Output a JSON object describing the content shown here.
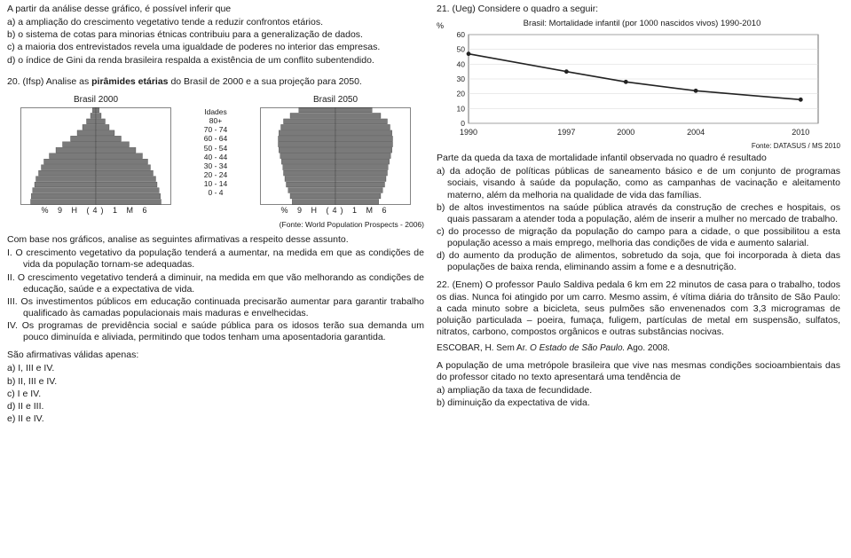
{
  "q19": {
    "intro": "A partir da análise desse gráfico, é possível inferir que",
    "opts": {
      "a": "a) a ampliação do crescimento vegetativo tende a reduzir confrontos etários.",
      "b": "b) o sistema de cotas para minorias étnicas contribuiu para a generalização de dados.",
      "c": "c) a maioria dos entrevistados revela uma igualdade de poderes no interior das empresas.",
      "d": "d) o índice de Gini da renda brasileira respalda a existência de um conflito subentendido."
    }
  },
  "q20": {
    "head_pre": "20. (Ifsp)  Analise as ",
    "head_bold": "pirâmides etárias",
    "head_post": " do Brasil de 2000 e a sua projeção para 2050.",
    "p2000_title": "Brasil 2000",
    "p2050_title": "Brasil 2050",
    "idades_title": "Idades",
    "idades_labels": [
      "80+",
      "70 - 74",
      "60 - 64",
      "50 - 54",
      "40 - 44",
      "30 - 34",
      "20 - 24",
      "10 - 14",
      "0 - 4"
    ],
    "axis": "9     H     (4)            1     M     6",
    "axis_pct": "%",
    "p2000_bars": [
      5,
      8,
      14,
      20,
      28,
      38,
      50,
      60,
      70,
      78,
      82,
      86,
      90,
      92,
      95,
      97,
      98
    ],
    "p2050_bars": [
      55,
      68,
      78,
      82,
      85,
      86,
      86,
      85,
      83,
      81,
      79,
      78,
      76,
      74,
      71,
      68,
      65
    ],
    "bar_color": "#7a7a7a",
    "source": "(Fonte: World Population Prospects - 2006)",
    "body": "Com base nos gráficos, analise as seguintes afirmativas a respeito desse assunto.",
    "stmts": {
      "i": "I. O crescimento vegetativo da população tenderá a aumentar, na medida em que as condições de vida da população tornam-se adequadas.",
      "ii": "II. O crescimento vegetativo tenderá a diminuir, na medida em que vão melhorando as condições de educação, saúde e a expectativa de vida.",
      "iii": "III. Os investimentos públicos em educação continuada precisarão aumentar para garantir trabalho qualificado às camadas populacionais mais maduras e envelhecidas.",
      "iv": "IV. Os programas de previdência social e saúde pública para os idosos terão sua demanda um pouco diminuída e aliviada, permitindo que todos tenham uma aposentadoria garantida."
    },
    "valid": "São afirmativas válidas apenas:",
    "opts": {
      "a": "a) I, III e IV.",
      "b": "b) II, III e IV.",
      "c": "c) I e IV.",
      "d": "d) II e III.",
      "e": "e) II e IV."
    }
  },
  "q21": {
    "head": "21. (Ueg)  Considere o quadro a seguir:",
    "chart": {
      "title": "Brasil: Mortalidade infantil (por 1000 nascidos vivos) 1990-2010",
      "pct": "%",
      "y_ticks": [
        60,
        50,
        40,
        30,
        20,
        10,
        0
      ],
      "x_labels": [
        "1990",
        "1997",
        "2000",
        "2004",
        "2010"
      ],
      "points_x": [
        0,
        0.28,
        0.45,
        0.65,
        0.95
      ],
      "points_y": [
        47,
        35,
        28,
        22,
        16
      ],
      "line_color": "#222222",
      "marker_color": "#222222",
      "bg": "#ffffff",
      "grid": "#d7d7d7",
      "source": "Fonte: DATASUS / MS 2010"
    },
    "overlay_labels": [
      "80+",
      "70 - 74",
      "60 - 64",
      "50 - 54",
      "40 - 44",
      "30 - 34",
      "20 - 24",
      "10 - 14"
    ],
    "body": "Parte da queda da taxa de mortalidade infantil observada no quadro é resultado",
    "opts": {
      "a": "a) da adoção de políticas públicas de saneamento básico e de um conjunto de programas sociais, visando à saúde da população, como as campanhas de vacinação e aleitamento materno, além da melhoria na qualidade de vida das famílias.",
      "b": "b) de altos investimentos na saúde pública através da construção de creches e hospitais, os quais passaram a atender toda a população, além de inserir a mulher no mercado de trabalho.",
      "c": "c) do processo de migração da população do campo para a cidade, o que possibilitou a esta população acesso a mais emprego, melhoria das condições de vida e aumento salarial.",
      "d": "d) do aumento da produção de alimentos, sobretudo da soja, que foi incorporada à dieta das populações de baixa renda, eliminando assim a fome e a desnutrição."
    }
  },
  "q22": {
    "head": "22. (Enem)  O professor Paulo Saldiva pedala 6 km em 22 minutos de casa para o trabalho, todos os dias. Nunca foi atingido por um carro. Mesmo assim, é vítima diária do trânsito de São Paulo: a cada minuto sobre a bicicleta, seus pulmões são envenenados com 3,3 microgramas de poluição particulada – poeira, fumaça, fuligem, partículas de metal em suspensão, sulfatos, nitratos, carbono, compostos orgânicos e outras substâncias nocivas.",
    "ref_author": "ESCOBAR, H. Sem Ar. ",
    "ref_ital": "O Estado de São Paulo.",
    "ref_date": " Ago. 2008.",
    "body2": "A população de uma metrópole brasileira que vive nas mesmas condições socioambientais das do professor citado no texto apresentará uma tendência de",
    "opts": {
      "a": "a) ampliação da taxa de fecundidade.",
      "b": "b) diminuição da expectativa de vida."
    }
  }
}
